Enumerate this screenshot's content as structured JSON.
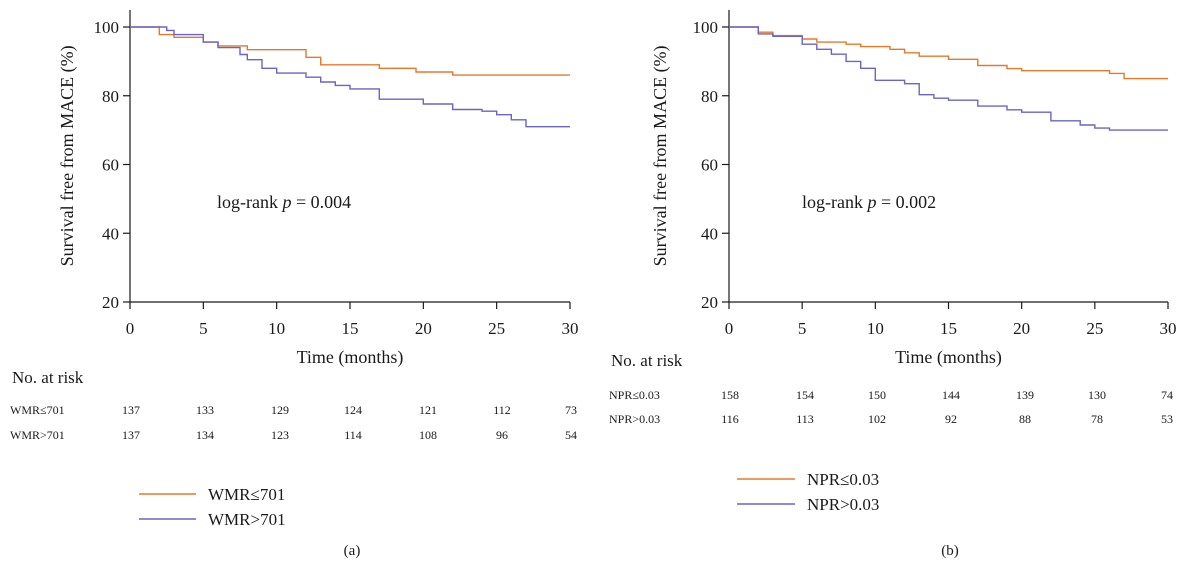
{
  "colors": {
    "low_group": "#e5792b",
    "high_group": "#6a64c8"
  },
  "chart_data": [
    {
      "type": "line",
      "panel_label": "(a)",
      "xlabel": "Time (months)",
      "ylabel": "Survival free from MACE (%)",
      "xlim": [
        0,
        30
      ],
      "ylim": [
        20,
        105
      ],
      "xticks": [
        0,
        5,
        10,
        15,
        20,
        25,
        30
      ],
      "yticks": [
        20,
        40,
        60,
        80,
        100
      ],
      "grid": false,
      "step": true,
      "annotation": {
        "prefix": "log-rank ",
        "symbol": "p",
        "suffix": " = 0.004"
      },
      "risk_table": {
        "title": "No. at risk",
        "rows": [
          {
            "name": "WMR≤701",
            "values": [
              "137",
              "133",
              "129",
              "124",
              "121",
              "112",
              "73"
            ]
          },
          {
            "name": "WMR>701",
            "values": [
              "137",
              "134",
              "123",
              "114",
              "108",
              "96",
              "54"
            ]
          }
        ]
      },
      "legend_position": "bottom-left",
      "series": [
        {
          "name": "WMR≤701",
          "color_key": "low_group",
          "points": [
            [
              0,
              100
            ],
            [
              2,
              100
            ],
            [
              2,
              97.8
            ],
            [
              3,
              97.8
            ],
            [
              3,
              97
            ],
            [
              5,
              97
            ],
            [
              5,
              95.6
            ],
            [
              6,
              95.6
            ],
            [
              6,
              94.5
            ],
            [
              8,
              94.5
            ],
            [
              8,
              93.4
            ],
            [
              12,
              93.4
            ],
            [
              12,
              91.2
            ],
            [
              13,
              91.2
            ],
            [
              13,
              89
            ],
            [
              17,
              89
            ],
            [
              17,
              88
            ],
            [
              19.5,
              88
            ],
            [
              19.5,
              86.9
            ],
            [
              22,
              86.9
            ],
            [
              22,
              86
            ],
            [
              30,
              86
            ]
          ]
        },
        {
          "name": "WMR>701",
          "color_key": "high_group",
          "points": [
            [
              0,
              100
            ],
            [
              2.5,
              100
            ],
            [
              2.5,
              99
            ],
            [
              3,
              99
            ],
            [
              3,
              97.8
            ],
            [
              5,
              97.8
            ],
            [
              5,
              95.6
            ],
            [
              6,
              95.6
            ],
            [
              6,
              94
            ],
            [
              7.5,
              94
            ],
            [
              7.5,
              92
            ],
            [
              8,
              92
            ],
            [
              8,
              90.5
            ],
            [
              9,
              90.5
            ],
            [
              9,
              88
            ],
            [
              10,
              88
            ],
            [
              10,
              86.6
            ],
            [
              12,
              86.6
            ],
            [
              12,
              85.4
            ],
            [
              13,
              85.4
            ],
            [
              13,
              84
            ],
            [
              14,
              84
            ],
            [
              14,
              83
            ],
            [
              15,
              83
            ],
            [
              15,
              82
            ],
            [
              17,
              82
            ],
            [
              17,
              79
            ],
            [
              20,
              79
            ],
            [
              20,
              77.6
            ],
            [
              22,
              77.6
            ],
            [
              22,
              76
            ],
            [
              24,
              76
            ],
            [
              24,
              75.5
            ],
            [
              25,
              75.5
            ],
            [
              25,
              74.5
            ],
            [
              26,
              74.5
            ],
            [
              26,
              73
            ],
            [
              27,
              73
            ],
            [
              27,
              71
            ],
            [
              30,
              71
            ]
          ]
        }
      ]
    },
    {
      "type": "line",
      "panel_label": "(b)",
      "xlabel": "Time (months)",
      "ylabel": "Survival free from MACE (%)",
      "xlim": [
        0,
        30
      ],
      "ylim": [
        20,
        105
      ],
      "xticks": [
        0,
        5,
        10,
        15,
        20,
        25,
        30
      ],
      "yticks": [
        20,
        40,
        60,
        80,
        100
      ],
      "grid": false,
      "step": true,
      "annotation": {
        "prefix": "log-rank ",
        "symbol": "p",
        "suffix": " = 0.002"
      },
      "risk_table": {
        "title": "No. at risk",
        "rows": [
          {
            "name": "NPR≤0.03",
            "values": [
              "158",
              "154",
              "150",
              "144",
              "139",
              "130",
              "74"
            ]
          },
          {
            "name": "NPR>0.03",
            "values": [
              "116",
              "113",
              "102",
              "92",
              "88",
              "78",
              "53"
            ]
          }
        ]
      },
      "legend_position": "bottom-center",
      "series": [
        {
          "name": "NPR≤0.03",
          "color_key": "low_group",
          "points": [
            [
              0,
              100
            ],
            [
              2,
              100
            ],
            [
              2,
              98.5
            ],
            [
              3,
              98.5
            ],
            [
              3,
              97.5
            ],
            [
              5,
              97.5
            ],
            [
              5,
              96.5
            ],
            [
              6,
              96.5
            ],
            [
              6,
              95.6
            ],
            [
              8,
              95.6
            ],
            [
              8,
              95
            ],
            [
              9,
              95
            ],
            [
              9,
              94.3
            ],
            [
              11,
              94.3
            ],
            [
              11,
              93.5
            ],
            [
              12,
              93.5
            ],
            [
              12,
              92.5
            ],
            [
              13,
              92.5
            ],
            [
              13,
              91.5
            ],
            [
              15,
              91.5
            ],
            [
              15,
              90.6
            ],
            [
              17,
              90.6
            ],
            [
              17,
              88.8
            ],
            [
              19,
              88.8
            ],
            [
              19,
              87.9
            ],
            [
              20,
              87.9
            ],
            [
              20,
              87.3
            ],
            [
              26,
              87.3
            ],
            [
              26,
              86.5
            ],
            [
              27,
              86.5
            ],
            [
              27,
              85
            ],
            [
              30,
              85
            ]
          ]
        },
        {
          "name": "NPR>0.03",
          "color_key": "high_group",
          "points": [
            [
              0,
              100
            ],
            [
              2,
              100
            ],
            [
              2,
              98
            ],
            [
              3,
              98
            ],
            [
              3,
              97.3
            ],
            [
              5,
              97.3
            ],
            [
              5,
              95
            ],
            [
              6,
              95
            ],
            [
              6,
              93.5
            ],
            [
              7,
              93.5
            ],
            [
              7,
              92.1
            ],
            [
              8,
              92.1
            ],
            [
              8,
              90
            ],
            [
              9,
              90
            ],
            [
              9,
              88
            ],
            [
              10,
              88
            ],
            [
              10,
              84.5
            ],
            [
              12,
              84.5
            ],
            [
              12,
              83.5
            ],
            [
              13,
              83.5
            ],
            [
              13,
              80.3
            ],
            [
              14,
              80.3
            ],
            [
              14,
              79.3
            ],
            [
              15,
              79.3
            ],
            [
              15,
              78.7
            ],
            [
              17,
              78.7
            ],
            [
              17,
              77
            ],
            [
              19,
              77
            ],
            [
              19,
              75.9
            ],
            [
              20,
              75.9
            ],
            [
              20,
              75.2
            ],
            [
              22,
              75.2
            ],
            [
              22,
              72.7
            ],
            [
              24,
              72.7
            ],
            [
              24,
              71.5
            ],
            [
              25,
              71.5
            ],
            [
              25,
              70.6
            ],
            [
              26,
              70.6
            ],
            [
              26,
              70
            ],
            [
              30,
              70
            ]
          ]
        }
      ]
    }
  ]
}
